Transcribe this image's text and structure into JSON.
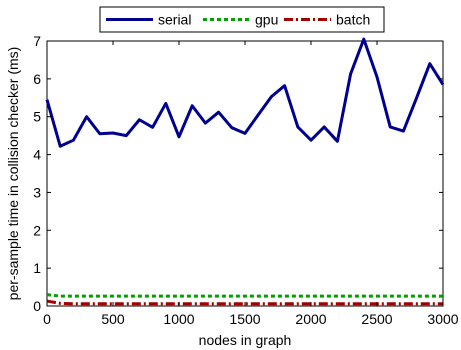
{
  "chart_data": {
    "type": "line",
    "title": "",
    "xlabel": "nodes in graph",
    "ylabel": "per-sample time in collision checker (ms)",
    "xlim": [
      0,
      3000
    ],
    "ylim": [
      0,
      7
    ],
    "xticks": [
      0,
      500,
      1000,
      1500,
      2000,
      2500,
      3000
    ],
    "yticks": [
      0,
      1,
      2,
      3,
      4,
      5,
      6,
      7
    ],
    "grid": false,
    "legend": "top, horizontal, outside plot area",
    "series": [
      {
        "name": "serial",
        "color": "#00008f",
        "style": "solid",
        "x": [
          0,
          100,
          200,
          300,
          400,
          500,
          600,
          700,
          800,
          900,
          1000,
          1100,
          1200,
          1300,
          1400,
          1500,
          1600,
          1700,
          1800,
          1900,
          2000,
          2100,
          2200,
          2300,
          2400,
          2500,
          2600,
          2700,
          2800,
          2900,
          3000
        ],
        "y": [
          5.45,
          4.22,
          4.38,
          5.0,
          4.55,
          4.57,
          4.5,
          4.92,
          4.72,
          5.35,
          4.47,
          5.29,
          4.83,
          5.12,
          4.71,
          4.56,
          5.05,
          5.53,
          5.82,
          4.73,
          4.38,
          4.73,
          4.35,
          6.13,
          7.05,
          6.05,
          4.73,
          4.62,
          5.5,
          6.4,
          5.85
        ]
      },
      {
        "name": "gpu",
        "color": "#00a000",
        "style": "dashed",
        "x": [
          0,
          100,
          200,
          300,
          400,
          500,
          600,
          700,
          800,
          900,
          1000,
          1100,
          1200,
          1300,
          1400,
          1500,
          1600,
          1700,
          1800,
          1900,
          2000,
          2100,
          2200,
          2300,
          2400,
          2500,
          2600,
          2700,
          2800,
          2900,
          3000
        ],
        "y": [
          0.3,
          0.26,
          0.26,
          0.26,
          0.26,
          0.26,
          0.26,
          0.26,
          0.26,
          0.26,
          0.26,
          0.26,
          0.26,
          0.26,
          0.26,
          0.26,
          0.26,
          0.26,
          0.26,
          0.26,
          0.26,
          0.26,
          0.26,
          0.26,
          0.26,
          0.26,
          0.26,
          0.26,
          0.26,
          0.26,
          0.26
        ]
      },
      {
        "name": "batch",
        "color": "#a00000",
        "style": "dashdot",
        "x": [
          0,
          100,
          200,
          300,
          400,
          500,
          600,
          700,
          800,
          900,
          1000,
          1100,
          1200,
          1300,
          1400,
          1500,
          1600,
          1700,
          1800,
          1900,
          2000,
          2100,
          2200,
          2300,
          2400,
          2500,
          2600,
          2700,
          2800,
          2900,
          3000
        ],
        "y": [
          0.13,
          0.07,
          0.06,
          0.06,
          0.06,
          0.06,
          0.06,
          0.06,
          0.06,
          0.06,
          0.06,
          0.06,
          0.06,
          0.06,
          0.06,
          0.06,
          0.06,
          0.06,
          0.06,
          0.06,
          0.06,
          0.06,
          0.06,
          0.06,
          0.06,
          0.06,
          0.06,
          0.06,
          0.06,
          0.06,
          0.06
        ]
      }
    ]
  }
}
